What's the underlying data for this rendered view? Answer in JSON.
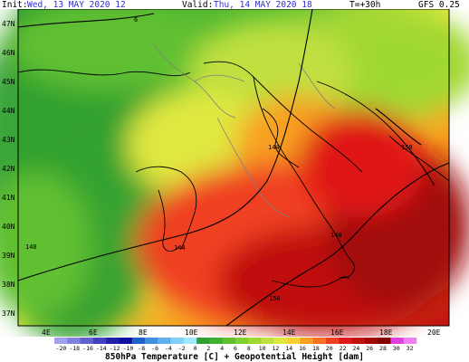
{
  "header": {
    "init_prefix": "Init:",
    "init_value": "Wed, 13 MAY 2020  12",
    "valid_prefix": "Valid:",
    "valid_value": "Thu, 14 MAY 2020  18",
    "lead": "T=+30h",
    "model": "GFS 0.25"
  },
  "axes": {
    "lat_labels": [
      "47N",
      "46N",
      "45N",
      "44N",
      "43N",
      "42N",
      "41N",
      "40N",
      "39N",
      "38N",
      "37N"
    ],
    "lon_labels": [
      "4E",
      "6E",
      "8E",
      "10E",
      "12E",
      "14E",
      "16E",
      "18E",
      "20E"
    ]
  },
  "contours": {
    "labels": [
      "144",
      "144",
      "150",
      "148",
      "150",
      "148",
      "6"
    ]
  },
  "legend": {
    "values": [
      "-20",
      "-18",
      "-16",
      "-14",
      "-12",
      "-10",
      "-8",
      "-6",
      "-4",
      "-2",
      "0",
      "2",
      "4",
      "6",
      "8",
      "10",
      "12",
      "14",
      "16",
      "18",
      "20",
      "22",
      "24",
      "26",
      "28",
      "30",
      "32"
    ],
    "colors": [
      "#a0a0f0",
      "#8080e0",
      "#6060d0",
      "#4040c0",
      "#2020a8",
      "#1010a0",
      "#2060c8",
      "#4090e0",
      "#60b0f0",
      "#80d0f8",
      "#a0e8ff",
      "#30a030",
      "#40b030",
      "#60c030",
      "#80d030",
      "#a0d830",
      "#c0e040",
      "#e0e840",
      "#f8d030",
      "#f8a020",
      "#f87020",
      "#f04020",
      "#e01818",
      "#c01010",
      "#a00808",
      "#800000",
      "#e040e0",
      "#f080f0"
    ],
    "caption": "850hPa Temperature [C] + Geopotential Height [dam]"
  },
  "colors": {
    "sea_green_dark": "#30a030",
    "green": "#60c030",
    "yellow_green": "#a0d830",
    "yellow": "#e0e840",
    "orange": "#f8a020",
    "red": "#f04020",
    "dark_red": "#a00808"
  }
}
